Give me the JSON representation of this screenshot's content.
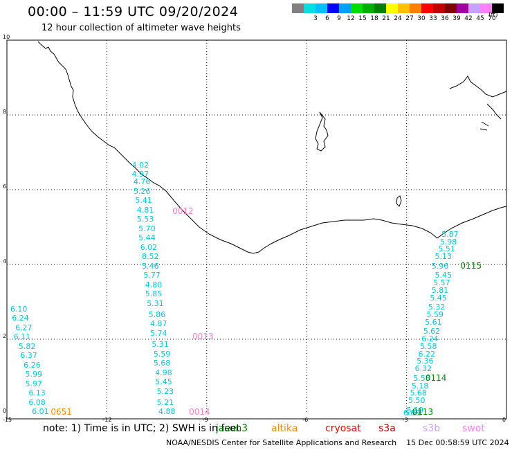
{
  "header": {
    "title": "00:00 – 11:59 UTC 09/20/2024",
    "subtitle": "12 hour collection of altimeter wave heights"
  },
  "legend": {
    "items": [
      {
        "label": "",
        "color": "#808080"
      },
      {
        "label": "3",
        "color": "#00e0e0"
      },
      {
        "label": "6",
        "color": "#00c0ff"
      },
      {
        "label": "9",
        "color": "#0000ff"
      },
      {
        "label": "12",
        "color": "#00a0ff"
      },
      {
        "label": "15",
        "color": "#00dd00"
      },
      {
        "label": "18",
        "color": "#00b000"
      },
      {
        "label": "21",
        "color": "#008000"
      },
      {
        "label": "24",
        "color": "#ffff00"
      },
      {
        "label": "27",
        "color": "#ffc000"
      },
      {
        "label": "30",
        "color": "#ff8000"
      },
      {
        "label": "33",
        "color": "#ff0000"
      },
      {
        "label": "36",
        "color": "#c00000"
      },
      {
        "label": "39",
        "color": "#800000"
      },
      {
        "label": "42",
        "color": "#a000a0"
      },
      {
        "label": "45",
        "color": "#c8a0ff"
      },
      {
        "label": "70",
        "color": "#ff80ff"
      },
      {
        "label": "(ft)",
        "color": "#000000"
      }
    ]
  },
  "axes": {
    "x_ticks": [
      "-15",
      "-12",
      "-9",
      "-6",
      "-3",
      "0"
    ],
    "y_ticks": [
      "0",
      "2",
      "4",
      "6",
      "8",
      "10"
    ]
  },
  "tracks": [
    {
      "name": "track-a",
      "color": "#00c8dc",
      "points": [
        {
          "lon": -14.65,
          "lat": 2.8,
          "v": "6.10"
        },
        {
          "lon": -14.6,
          "lat": 2.55,
          "v": "6.24"
        },
        {
          "lon": -14.5,
          "lat": 2.3,
          "v": "6.27"
        },
        {
          "lon": -14.55,
          "lat": 2.05,
          "v": "6.11"
        },
        {
          "lon": -14.4,
          "lat": 1.8,
          "v": "5.82"
        },
        {
          "lon": -14.35,
          "lat": 1.55,
          "v": "6.37"
        },
        {
          "lon": -14.25,
          "lat": 1.3,
          "v": "6.26"
        },
        {
          "lon": -14.2,
          "lat": 1.05,
          "v": "5.99"
        },
        {
          "lon": -14.2,
          "lat": 0.8,
          "v": "5.97"
        },
        {
          "lon": -14.1,
          "lat": 0.55,
          "v": "6.13"
        },
        {
          "lon": -14.1,
          "lat": 0.3,
          "v": "6.08"
        },
        {
          "lon": -14.0,
          "lat": 0.05,
          "v": "6.01"
        }
      ]
    },
    {
      "name": "track-b",
      "color": "#00c8dc",
      "points": [
        {
          "lon": -11.0,
          "lat": 6.65,
          "v": "4.02"
        },
        {
          "lon": -11.0,
          "lat": 6.4,
          "v": "4.97"
        },
        {
          "lon": -10.95,
          "lat": 6.2,
          "v": "4.76"
        },
        {
          "lon": -10.95,
          "lat": 5.95,
          "v": "5.26"
        },
        {
          "lon": -10.9,
          "lat": 5.7,
          "v": "5.41"
        },
        {
          "lon": -10.85,
          "lat": 5.45,
          "v": "4.81"
        },
        {
          "lon": -10.85,
          "lat": 5.2,
          "v": "5.53"
        },
        {
          "lon": -10.8,
          "lat": 4.95,
          "v": "5.70"
        },
        {
          "lon": -10.8,
          "lat": 4.7,
          "v": "5.44"
        },
        {
          "lon": -10.75,
          "lat": 4.45,
          "v": "6.02"
        },
        {
          "lon": -10.7,
          "lat": 4.2,
          "v": "8.52"
        },
        {
          "lon": -10.7,
          "lat": 3.95,
          "v": "5.46"
        },
        {
          "lon": -10.65,
          "lat": 3.7,
          "v": "5.77"
        },
        {
          "lon": -10.6,
          "lat": 3.45,
          "v": "4.80"
        },
        {
          "lon": -10.6,
          "lat": 3.2,
          "v": "5.85"
        },
        {
          "lon": -10.55,
          "lat": 2.95,
          "v": "5.31"
        },
        {
          "lon": -10.5,
          "lat": 2.65,
          "v": "5.86"
        },
        {
          "lon": -10.45,
          "lat": 2.4,
          "v": "4.87"
        },
        {
          "lon": -10.45,
          "lat": 2.15,
          "v": "5.74"
        },
        {
          "lon": -10.4,
          "lat": 1.85,
          "v": "5.31"
        },
        {
          "lon": -10.35,
          "lat": 1.6,
          "v": "5.59"
        },
        {
          "lon": -10.35,
          "lat": 1.35,
          "v": "5.68"
        },
        {
          "lon": -10.3,
          "lat": 1.1,
          "v": "4.98"
        },
        {
          "lon": -10.3,
          "lat": 0.85,
          "v": "5.45"
        },
        {
          "lon": -10.25,
          "lat": 0.6,
          "v": "5.23"
        },
        {
          "lon": -10.25,
          "lat": 0.3,
          "v": "5.21"
        },
        {
          "lon": -10.2,
          "lat": 0.05,
          "v": "4.88"
        }
      ]
    },
    {
      "name": "track-c",
      "color": "#00c8dc",
      "points": [
        {
          "lon": -1.7,
          "lat": 4.8,
          "v": "5.87"
        },
        {
          "lon": -1.75,
          "lat": 4.6,
          "v": "5.98"
        },
        {
          "lon": -1.8,
          "lat": 4.4,
          "v": "5.51"
        },
        {
          "lon": -1.9,
          "lat": 4.2,
          "v": "5.13"
        },
        {
          "lon": -2.0,
          "lat": 3.95,
          "v": "5.96"
        },
        {
          "lon": -1.9,
          "lat": 3.7,
          "v": "5.45"
        },
        {
          "lon": -1.95,
          "lat": 3.5,
          "v": "5.57"
        },
        {
          "lon": -2.0,
          "lat": 3.3,
          "v": "5.81"
        },
        {
          "lon": -2.05,
          "lat": 3.1,
          "v": "5.45"
        },
        {
          "lon": -2.1,
          "lat": 2.85,
          "v": "5.32"
        },
        {
          "lon": -2.15,
          "lat": 2.65,
          "v": "5.59"
        },
        {
          "lon": -2.2,
          "lat": 2.45,
          "v": "5.61"
        },
        {
          "lon": -2.25,
          "lat": 2.2,
          "v": "5.62"
        },
        {
          "lon": -2.3,
          "lat": 2.0,
          "v": "6.24"
        },
        {
          "lon": -2.35,
          "lat": 1.8,
          "v": "5.58"
        },
        {
          "lon": -2.4,
          "lat": 1.6,
          "v": "6.22"
        },
        {
          "lon": -2.45,
          "lat": 1.4,
          "v": "5.36"
        },
        {
          "lon": -2.5,
          "lat": 1.2,
          "v": "6.32"
        },
        {
          "lon": -2.55,
          "lat": 0.95,
          "v": "5.58"
        },
        {
          "lon": -2.6,
          "lat": 0.75,
          "v": "5.18"
        },
        {
          "lon": -2.65,
          "lat": 0.55,
          "v": "5.68"
        },
        {
          "lon": -2.7,
          "lat": 0.35,
          "v": "5.50"
        },
        {
          "lon": -2.75,
          "lat": 0.1,
          "v": "5.19"
        },
        {
          "lon": -2.8,
          "lat": -0.1,
          "v": "5.61"
        },
        {
          "lon": -2.85,
          "lat": -0.3,
          "v": "6.09"
        }
      ]
    }
  ],
  "pass_labels": [
    {
      "text": "0651",
      "color": "#ff8c00",
      "lon": -13.6,
      "lat": -0.05
    },
    {
      "text": "0012",
      "color": "#ff80c0",
      "lon": -9.95,
      "lat": 5.4
    },
    {
      "text": "0013",
      "color": "#ff80c0",
      "lon": -9.35,
      "lat": 2.05
    },
    {
      "text": "0014",
      "color": "#ff80c0",
      "lon": -9.45,
      "lat": -0.05
    },
    {
      "text": "0115",
      "color": "#008800",
      "lon": -1.3,
      "lat": 3.95
    },
    {
      "text": "0114",
      "color": "#008800",
      "lon": -2.35,
      "lat": 0.95
    },
    {
      "text": "0113",
      "color": "#008800",
      "lon": -2.75,
      "lat": 0.0
    }
  ],
  "footer": {
    "note": "note:  1) Time is in UTC;  2) SWH is in feet",
    "satellites": [
      {
        "name": "jason3",
        "color": "#008000"
      },
      {
        "name": "altika",
        "color": "#ff8c00"
      },
      {
        "name": "cryosat",
        "color": "#ff0000"
      },
      {
        "name": "s3a",
        "color": "#c00000"
      },
      {
        "name": "s3b",
        "color": "#c8a0ff"
      },
      {
        "name": "swot",
        "color": "#ff80ff"
      }
    ],
    "credit": "NOAA/NESDIS Center for Satellite Applications and Research    15 Dec 00:58:59 UTC 2024"
  }
}
